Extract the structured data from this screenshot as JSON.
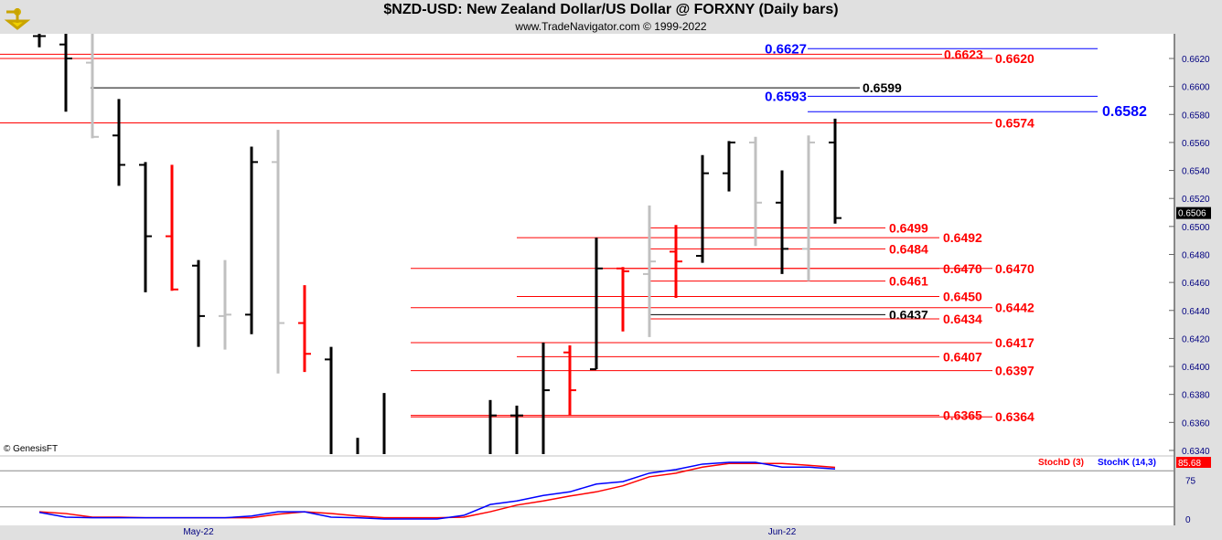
{
  "header": {
    "title": "$NZD-USD:  New Zealand Dollar/US Dollar @ FORXNY  (Daily bars)",
    "subtitle": "www.TradeNavigator.com © 1999-2022"
  },
  "copyright": "© GenesisFT",
  "chart_data": [
    {
      "type": "ohlc",
      "title": "$NZD-USD:  New Zealand Dollar/US Dollar @ FORXNY  (Daily bars)",
      "ylim": [
        0.6335,
        0.6638
      ],
      "yticks": [
        "0.6620",
        "0.6600",
        "0.6580",
        "0.6560",
        "0.6540",
        "0.6520",
        "0.6500",
        "0.6480",
        "0.6460",
        "0.6440",
        "0.6420",
        "0.6400",
        "0.6380",
        "0.6360",
        "0.6340"
      ],
      "last_price": "0.6506",
      "xticks": [
        {
          "bar": 6,
          "label": "May-22"
        },
        {
          "bar": 28,
          "label": "Jun-22"
        }
      ],
      "colors": {
        "up": "#000000",
        "down": "#ff0000",
        "neutral": "#c0c0c0"
      },
      "bars": [
        {
          "o": 0.6636,
          "h": 0.664,
          "l": 0.6628,
          "c": 0.6636,
          "color": "up"
        },
        {
          "o": 0.663,
          "h": 0.664,
          "l": 0.6582,
          "c": 0.662,
          "color": "up"
        },
        {
          "o": 0.6617,
          "h": 0.664,
          "l": 0.6563,
          "c": 0.6564,
          "color": "neutral"
        },
        {
          "o": 0.6565,
          "h": 0.6591,
          "l": 0.6529,
          "c": 0.6544,
          "color": "up"
        },
        {
          "o": 0.6544,
          "h": 0.6546,
          "l": 0.6453,
          "c": 0.6493,
          "color": "up"
        },
        {
          "o": 0.6493,
          "h": 0.6544,
          "l": 0.6454,
          "c": 0.6455,
          "color": "down"
        },
        {
          "o": 0.6472,
          "h": 0.6476,
          "l": 0.6414,
          "c": 0.6436,
          "color": "up"
        },
        {
          "o": 0.6436,
          "h": 0.6476,
          "l": 0.6412,
          "c": 0.6437,
          "color": "neutral"
        },
        {
          "o": 0.6437,
          "h": 0.6557,
          "l": 0.6423,
          "c": 0.6546,
          "color": "up"
        },
        {
          "o": 0.6546,
          "h": 0.6569,
          "l": 0.6395,
          "c": 0.6431,
          "color": "neutral"
        },
        {
          "o": 0.6431,
          "h": 0.6458,
          "l": 0.6396,
          "c": 0.6409,
          "color": "down"
        },
        {
          "o": 0.6405,
          "h": 0.6414,
          "l": 0.632,
          "c": 0.6325,
          "color": "up"
        },
        {
          "o": 0.6325,
          "h": 0.6349,
          "l": 0.6315,
          "c": 0.632,
          "color": "up"
        },
        {
          "o": 0.632,
          "h": 0.6381,
          "l": 0.631,
          "c": 0.6325,
          "color": "up"
        },
        null,
        null,
        null,
        {
          "o": 0.632,
          "h": 0.6376,
          "l": 0.631,
          "c": 0.6365,
          "color": "up"
        },
        {
          "o": 0.6365,
          "h": 0.6372,
          "l": 0.631,
          "c": 0.6365,
          "color": "up"
        },
        {
          "o": 0.632,
          "h": 0.6417,
          "l": 0.631,
          "c": 0.6383,
          "color": "up"
        },
        {
          "o": 0.641,
          "h": 0.6415,
          "l": 0.6365,
          "c": 0.6383,
          "color": "down"
        },
        {
          "o": 0.6398,
          "h": 0.6492,
          "l": 0.6398,
          "c": 0.647,
          "color": "up"
        },
        {
          "o": 0.647,
          "h": 0.6471,
          "l": 0.6425,
          "c": 0.6468,
          "color": "down"
        },
        {
          "o": 0.6466,
          "h": 0.6515,
          "l": 0.6421,
          "c": 0.6475,
          "color": "neutral"
        },
        {
          "o": 0.6482,
          "h": 0.6501,
          "l": 0.6449,
          "c": 0.6475,
          "color": "down"
        },
        {
          "o": 0.6479,
          "h": 0.6551,
          "l": 0.6474,
          "c": 0.6538,
          "color": "up"
        },
        {
          "o": 0.6538,
          "h": 0.6561,
          "l": 0.6525,
          "c": 0.656,
          "color": "up"
        },
        {
          "o": 0.656,
          "h": 0.6564,
          "l": 0.6486,
          "c": 0.6517,
          "color": "neutral"
        },
        {
          "o": 0.6517,
          "h": 0.654,
          "l": 0.6466,
          "c": 0.6484,
          "color": "up"
        },
        {
          "o": 0.6484,
          "h": 0.6565,
          "l": 0.6461,
          "c": 0.656,
          "color": "neutral"
        },
        {
          "o": 0.656,
          "h": 0.6577,
          "l": 0.6502,
          "c": 0.6506,
          "color": "up"
        }
      ],
      "levels": [
        {
          "value": 0.6627,
          "label": "0.6627",
          "color": "#0000ff"
        },
        {
          "value": 0.6623,
          "label": "0.6623",
          "color": "#ff0000"
        },
        {
          "value": 0.662,
          "label": "0.6620",
          "color": "#ff0000"
        },
        {
          "value": 0.6599,
          "label": "0.6599",
          "color": "#000000"
        },
        {
          "value": 0.6593,
          "label": "0.6593",
          "color": "#0000ff"
        },
        {
          "value": 0.6582,
          "label": "0.6582",
          "color": "#0000ff"
        },
        {
          "value": 0.6574,
          "label": "0.6574",
          "color": "#ff0000"
        },
        {
          "value": 0.6499,
          "label": "0.6499",
          "color": "#ff0000"
        },
        {
          "value": 0.6492,
          "label": "0.6492",
          "color": "#ff0000"
        },
        {
          "value": 0.6484,
          "label": "0.6484",
          "color": "#ff0000"
        },
        {
          "value": 0.647,
          "label": "0.6470",
          "color": "#ff0000"
        },
        {
          "value": 0.647,
          "label": "0.6470",
          "color": "#ff0000"
        },
        {
          "value": 0.6461,
          "label": "0.6461",
          "color": "#ff0000"
        },
        {
          "value": 0.645,
          "label": "0.6450",
          "color": "#ff0000"
        },
        {
          "value": 0.6442,
          "label": "0.6442",
          "color": "#ff0000"
        },
        {
          "value": 0.6437,
          "label": "0.6437",
          "color": "#000000"
        },
        {
          "value": 0.6434,
          "label": "0.6434",
          "color": "#ff0000"
        },
        {
          "value": 0.6417,
          "label": "0.6417",
          "color": "#ff0000"
        },
        {
          "value": 0.6407,
          "label": "0.6407",
          "color": "#ff0000"
        },
        {
          "value": 0.6397,
          "label": "0.6397",
          "color": "#ff0000"
        },
        {
          "value": 0.6365,
          "label": "0.6365",
          "color": "#ff0000"
        },
        {
          "value": 0.6364,
          "label": "0.6364",
          "color": "#ff0000"
        }
      ]
    },
    {
      "type": "line",
      "ylim": [
        0,
        100
      ],
      "yticks": [
        "75",
        "0"
      ],
      "reference_lines": [
        80,
        20
      ],
      "last_value": "85.68",
      "series": [
        {
          "name": "StochD (3)",
          "color": "#ff0000",
          "values": [
            12,
            9,
            3,
            3,
            2,
            2,
            2,
            2,
            2,
            8,
            12,
            9,
            5,
            2,
            2,
            2,
            3,
            12,
            23,
            30,
            38,
            45,
            55,
            70,
            76,
            86,
            92,
            92,
            92,
            89,
            85.68
          ]
        },
        {
          "name": "StochK (14,3)",
          "color": "#0000ff",
          "values": [
            11,
            3,
            2,
            2,
            2,
            2,
            2,
            2,
            5,
            12,
            12,
            3,
            2,
            0,
            0,
            0,
            6,
            24,
            30,
            39,
            45,
            58,
            62,
            76,
            82,
            91,
            94,
            94,
            86,
            86,
            83
          ]
        }
      ]
    }
  ]
}
